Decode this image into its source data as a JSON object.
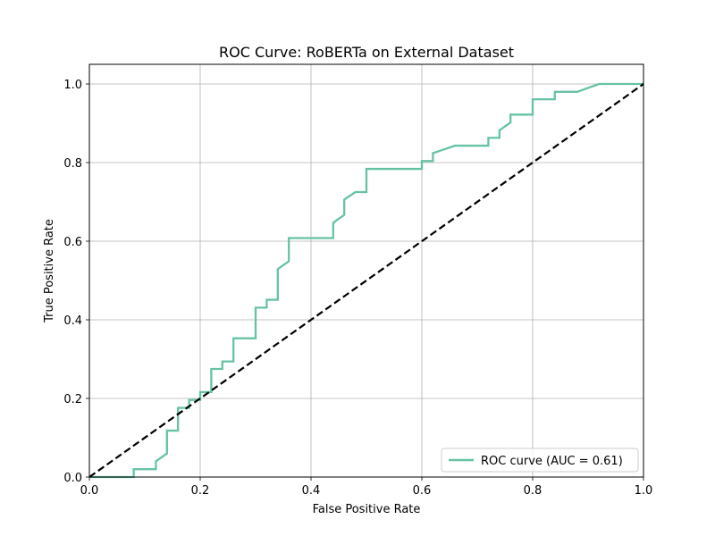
{
  "chart_data": {
    "type": "line",
    "title": "ROC Curve: RoBERTa on External Dataset",
    "xlabel": "False Positive Rate",
    "ylabel": "True Positive Rate",
    "xlim": [
      0.0,
      1.0
    ],
    "ylim": [
      0.0,
      1.05
    ],
    "xticks": [
      "0.0",
      "0.2",
      "0.4",
      "0.6",
      "0.8",
      "1.0"
    ],
    "yticks": [
      "0.0",
      "0.2",
      "0.4",
      "0.6",
      "0.8",
      "1.0"
    ],
    "grid": true,
    "legend_position": "lower-right",
    "series": [
      {
        "name": "ROC curve (AUC = 0.61)",
        "color": "#66c2a5",
        "style": "solid",
        "x": [
          0.0,
          0.08,
          0.08,
          0.12,
          0.12,
          0.14,
          0.14,
          0.16,
          0.16,
          0.18,
          0.18,
          0.2,
          0.2,
          0.22,
          0.22,
          0.24,
          0.24,
          0.26,
          0.26,
          0.3,
          0.3,
          0.32,
          0.32,
          0.34,
          0.34,
          0.36,
          0.36,
          0.44,
          0.44,
          0.46,
          0.46,
          0.48,
          0.48,
          0.5,
          0.5,
          0.6,
          0.6,
          0.62,
          0.62,
          0.66,
          0.72,
          0.72,
          0.74,
          0.74,
          0.76,
          0.76,
          0.8,
          0.8,
          0.84,
          0.84,
          0.88,
          0.92,
          1.0
        ],
        "y": [
          0.0,
          0.0,
          0.02,
          0.02,
          0.04,
          0.06,
          0.118,
          0.118,
          0.176,
          0.176,
          0.196,
          0.196,
          0.216,
          0.216,
          0.275,
          0.275,
          0.294,
          0.294,
          0.353,
          0.353,
          0.431,
          0.431,
          0.451,
          0.451,
          0.529,
          0.549,
          0.608,
          0.608,
          0.647,
          0.667,
          0.706,
          0.725,
          0.725,
          0.725,
          0.784,
          0.784,
          0.804,
          0.804,
          0.824,
          0.843,
          0.843,
          0.863,
          0.863,
          0.882,
          0.902,
          0.922,
          0.922,
          0.961,
          0.961,
          0.98,
          0.98,
          1.0,
          1.0
        ]
      },
      {
        "name": "",
        "color": "#000000",
        "style": "dashed",
        "x": [
          0.0,
          1.0
        ],
        "y": [
          0.0,
          1.0
        ]
      }
    ]
  }
}
